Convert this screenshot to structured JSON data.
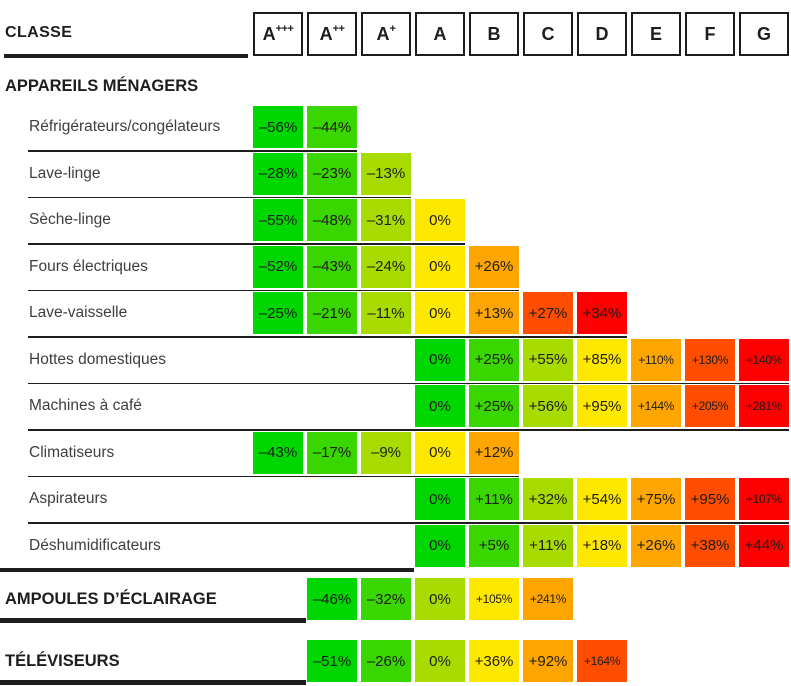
{
  "header": {
    "label": "CLASSE",
    "classes": [
      {
        "base": "A",
        "sup": "+++"
      },
      {
        "base": "A",
        "sup": "++"
      },
      {
        "base": "A",
        "sup": "+"
      },
      {
        "base": "A",
        "sup": ""
      },
      {
        "base": "B",
        "sup": ""
      },
      {
        "base": "C",
        "sup": ""
      },
      {
        "base": "D",
        "sup": ""
      },
      {
        "base": "E",
        "sup": ""
      },
      {
        "base": "F",
        "sup": ""
      },
      {
        "base": "G",
        "sup": ""
      }
    ]
  },
  "colors": {
    "ink": "#1d1d1b",
    "label_text": "#3e3e3d",
    "background": "#ffffff"
  },
  "chart_data": {
    "type": "heatmap",
    "title": "CLASSE",
    "columns": [
      "A+++",
      "A++",
      "A+",
      "A",
      "B",
      "C",
      "D",
      "E",
      "F",
      "G"
    ],
    "palette": [
      "#00d600",
      "#3ad600",
      "#a8db00",
      "#ffe800",
      "#ffa500",
      "#ff4d00",
      "#fd0000"
    ],
    "palette_meaning": [
      "green",
      "light-green",
      "yellow-green",
      "yellow",
      "orange",
      "dark-orange",
      "red"
    ],
    "section_title": "APPAREILS MÉNAGERS",
    "rows": [
      {
        "label": "Réfrigérateurs/congélateurs",
        "start_class": "A+++",
        "values": [
          "–56%",
          "–44%"
        ]
      },
      {
        "label": "Lave-linge",
        "start_class": "A+++",
        "values": [
          "–28%",
          "–23%",
          "–13%"
        ]
      },
      {
        "label": "Sèche-linge",
        "start_class": "A+++",
        "values": [
          "–55%",
          "–48%",
          "–31%",
          "0%"
        ]
      },
      {
        "label": "Fours électriques",
        "start_class": "A+++",
        "values": [
          "–52%",
          "–43%",
          "–24%",
          "0%",
          "+26%"
        ]
      },
      {
        "label": "Lave-vaisselle",
        "start_class": "A+++",
        "values": [
          "–25%",
          "–21%",
          "–11%",
          "0%",
          "+13%",
          "+27%",
          "+34%"
        ]
      },
      {
        "label": "Hottes domestiques",
        "start_class": "A",
        "values": [
          "0%",
          "+25%",
          "+55%",
          "+85%",
          "+110%",
          "+130%",
          "+140%"
        ]
      },
      {
        "label": "Machines à café",
        "start_class": "A",
        "values": [
          "0%",
          "+25%",
          "+56%",
          "+95%",
          "+144%",
          "+205%",
          "+281%"
        ]
      },
      {
        "label": "Climatiseurs",
        "start_class": "A+++",
        "values": [
          "–43%",
          "–17%",
          "–9%",
          "0%",
          "+12%"
        ]
      },
      {
        "label": "Aspirateurs",
        "start_class": "A",
        "values": [
          "0%",
          "+11%",
          "+32%",
          "+54%",
          "+75%",
          "+95%",
          "+107%"
        ]
      },
      {
        "label": "Déshumidificateurs",
        "start_class": "A",
        "values": [
          "0%",
          "+5%",
          "+11%",
          "+18%",
          "+26%",
          "+38%",
          "+44%"
        ]
      }
    ],
    "bottom_rows": [
      {
        "label": "AMPOULES D’ÉCLAIRAGE",
        "start_class": "A++",
        "values": [
          "–46%",
          "–32%",
          "0%",
          "+105%",
          "+241%"
        ]
      },
      {
        "label": "TÉLÉVISEURS",
        "start_class": "A++",
        "values": [
          "–51%",
          "–26%",
          "0%",
          "+36%",
          "+92%",
          "+164%"
        ]
      }
    ]
  }
}
